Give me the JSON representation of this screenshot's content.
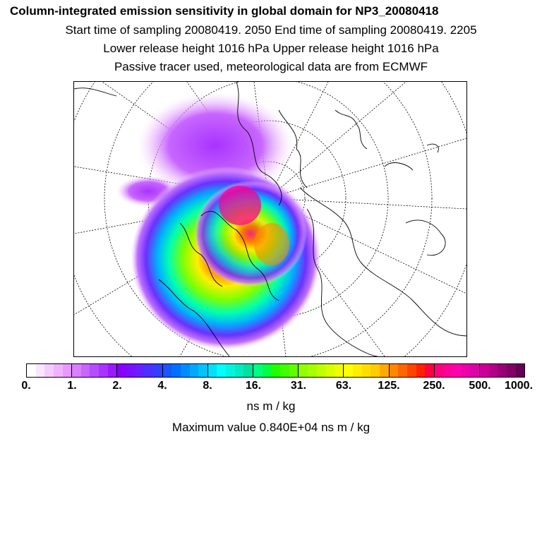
{
  "titles": {
    "title": "Column-integrated emission sensitivity in global domain for NP3_20080418",
    "line2": "Start time of sampling 20080419.  2050      End time of sampling 20080419.  2205",
    "line3": "Lower release height 1016 hPa         Upper release height 1016 hPa",
    "line4": "Passive tracer used, meteorological data are from ECMWF"
  },
  "colorbar": {
    "tick_labels": [
      "0.",
      "1.",
      "2.",
      "4.",
      "8.",
      "16.",
      "31.",
      "63.",
      "125.",
      "250.",
      "500.",
      "1000."
    ],
    "unit": "ns m / kg",
    "segment_colors": [
      "#ffffff",
      "#fbe6ff",
      "#f5ccff",
      "#efb3ff",
      "#e899ff",
      "#d97fff",
      "#c866ff",
      "#b64cff",
      "#a833ff",
      "#9a1aff",
      "#8800ff",
      "#7a10ff",
      "#6620ff",
      "#4c30ff",
      "#3340ff",
      "#1a55ff",
      "#0070ff",
      "#008cff",
      "#00a8ff",
      "#00c4ff",
      "#00e0ff",
      "#00ffff",
      "#00f5e0",
      "#00ebc0",
      "#00e1a0",
      "#00ff80",
      "#00ff40",
      "#20ff00",
      "#40ff00",
      "#60ff00",
      "#90ff00",
      "#a8ff00",
      "#c0ff00",
      "#d8ff00",
      "#f0ff00",
      "#ffff00",
      "#ffee00",
      "#ffdd00",
      "#ffcc00",
      "#ffaa00",
      "#ff8800",
      "#ff6600",
      "#ff4400",
      "#ff2200",
      "#ff0040",
      "#ff0080",
      "#ff0099",
      "#ff00aa",
      "#ee00aa",
      "#dd00aa",
      "#cc0099",
      "#b30088",
      "#990077",
      "#800066",
      "#660055"
    ]
  },
  "footer": {
    "max_value": "Maximum value  0.840E+04 ns m / kg"
  },
  "colors": {
    "frame": "#000000",
    "background": "#ffffff"
  }
}
